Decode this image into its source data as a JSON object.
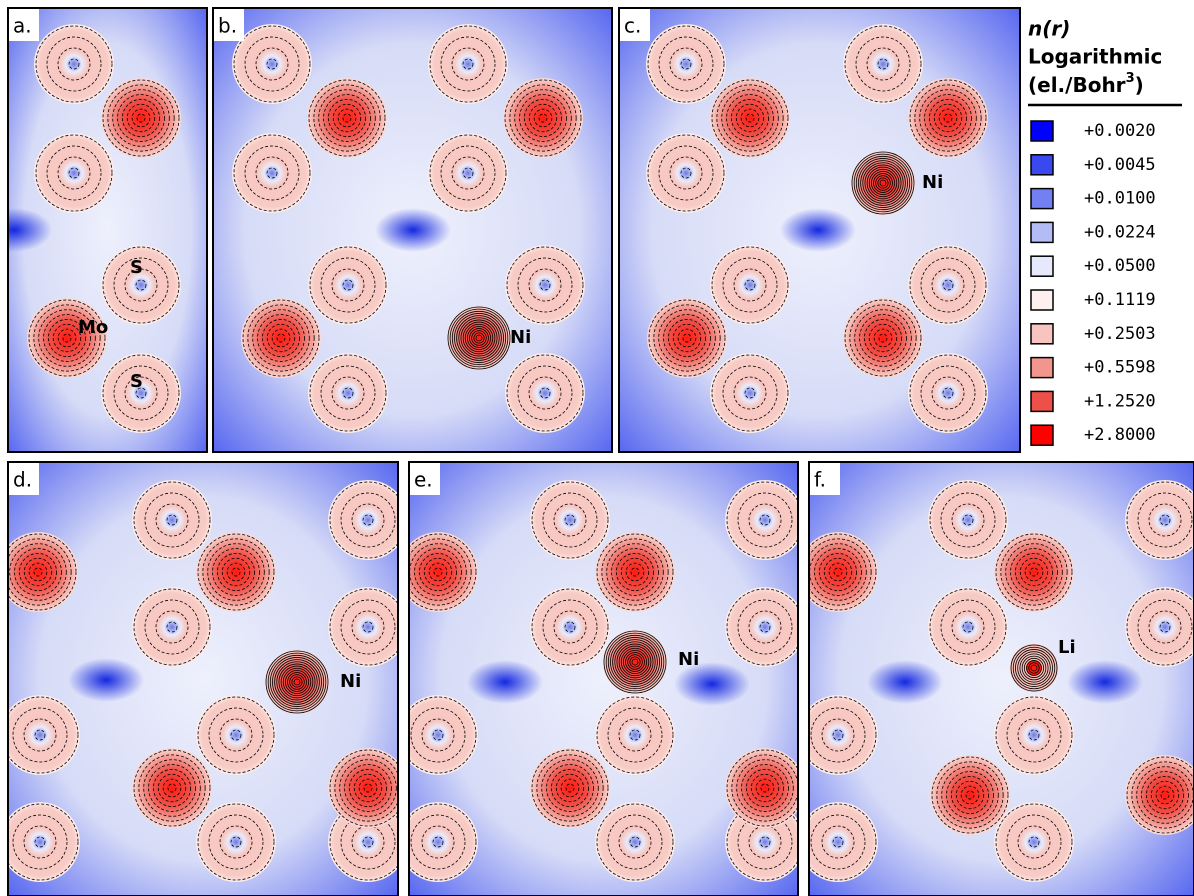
{
  "panels": [
    {
      "label": "a.",
      "atoms": [
        "Mo",
        "S",
        "S"
      ]
    },
    {
      "label": "b.",
      "atoms": [
        "Ni"
      ]
    },
    {
      "label": "c.",
      "atoms": [
        "Ni"
      ]
    },
    {
      "label": "d.",
      "atoms": [
        "Ni"
      ]
    },
    {
      "label": "e.",
      "atoms": [
        "Ni"
      ]
    },
    {
      "label": "f.",
      "atoms": [
        "Li"
      ]
    }
  ],
  "legend": {
    "title": "n(r)",
    "subtitle": "Logarithmic",
    "unit_prefix": "(el./Bohr",
    "unit_exponent": "3",
    "unit_suffix": ")",
    "entries": [
      {
        "label": "+0.0020",
        "color": "#0000ff"
      },
      {
        "label": "+0.0045",
        "color": "#3a48f0"
      },
      {
        "label": "+0.0100",
        "color": "#7380f2"
      },
      {
        "label": "+0.0224",
        "color": "#b4bcf6"
      },
      {
        "label": "+0.0500",
        "color": "#e6e8fb"
      },
      {
        "label": "+0.1119",
        "color": "#fdf0ee"
      },
      {
        "label": "+0.2503",
        "color": "#f8c4bf"
      },
      {
        "label": "+0.5598",
        "color": "#f2958d"
      },
      {
        "label": "+1.2520",
        "color": "#ec5048"
      },
      {
        "label": "+2.8000",
        "color": "#ff0000"
      }
    ]
  }
}
